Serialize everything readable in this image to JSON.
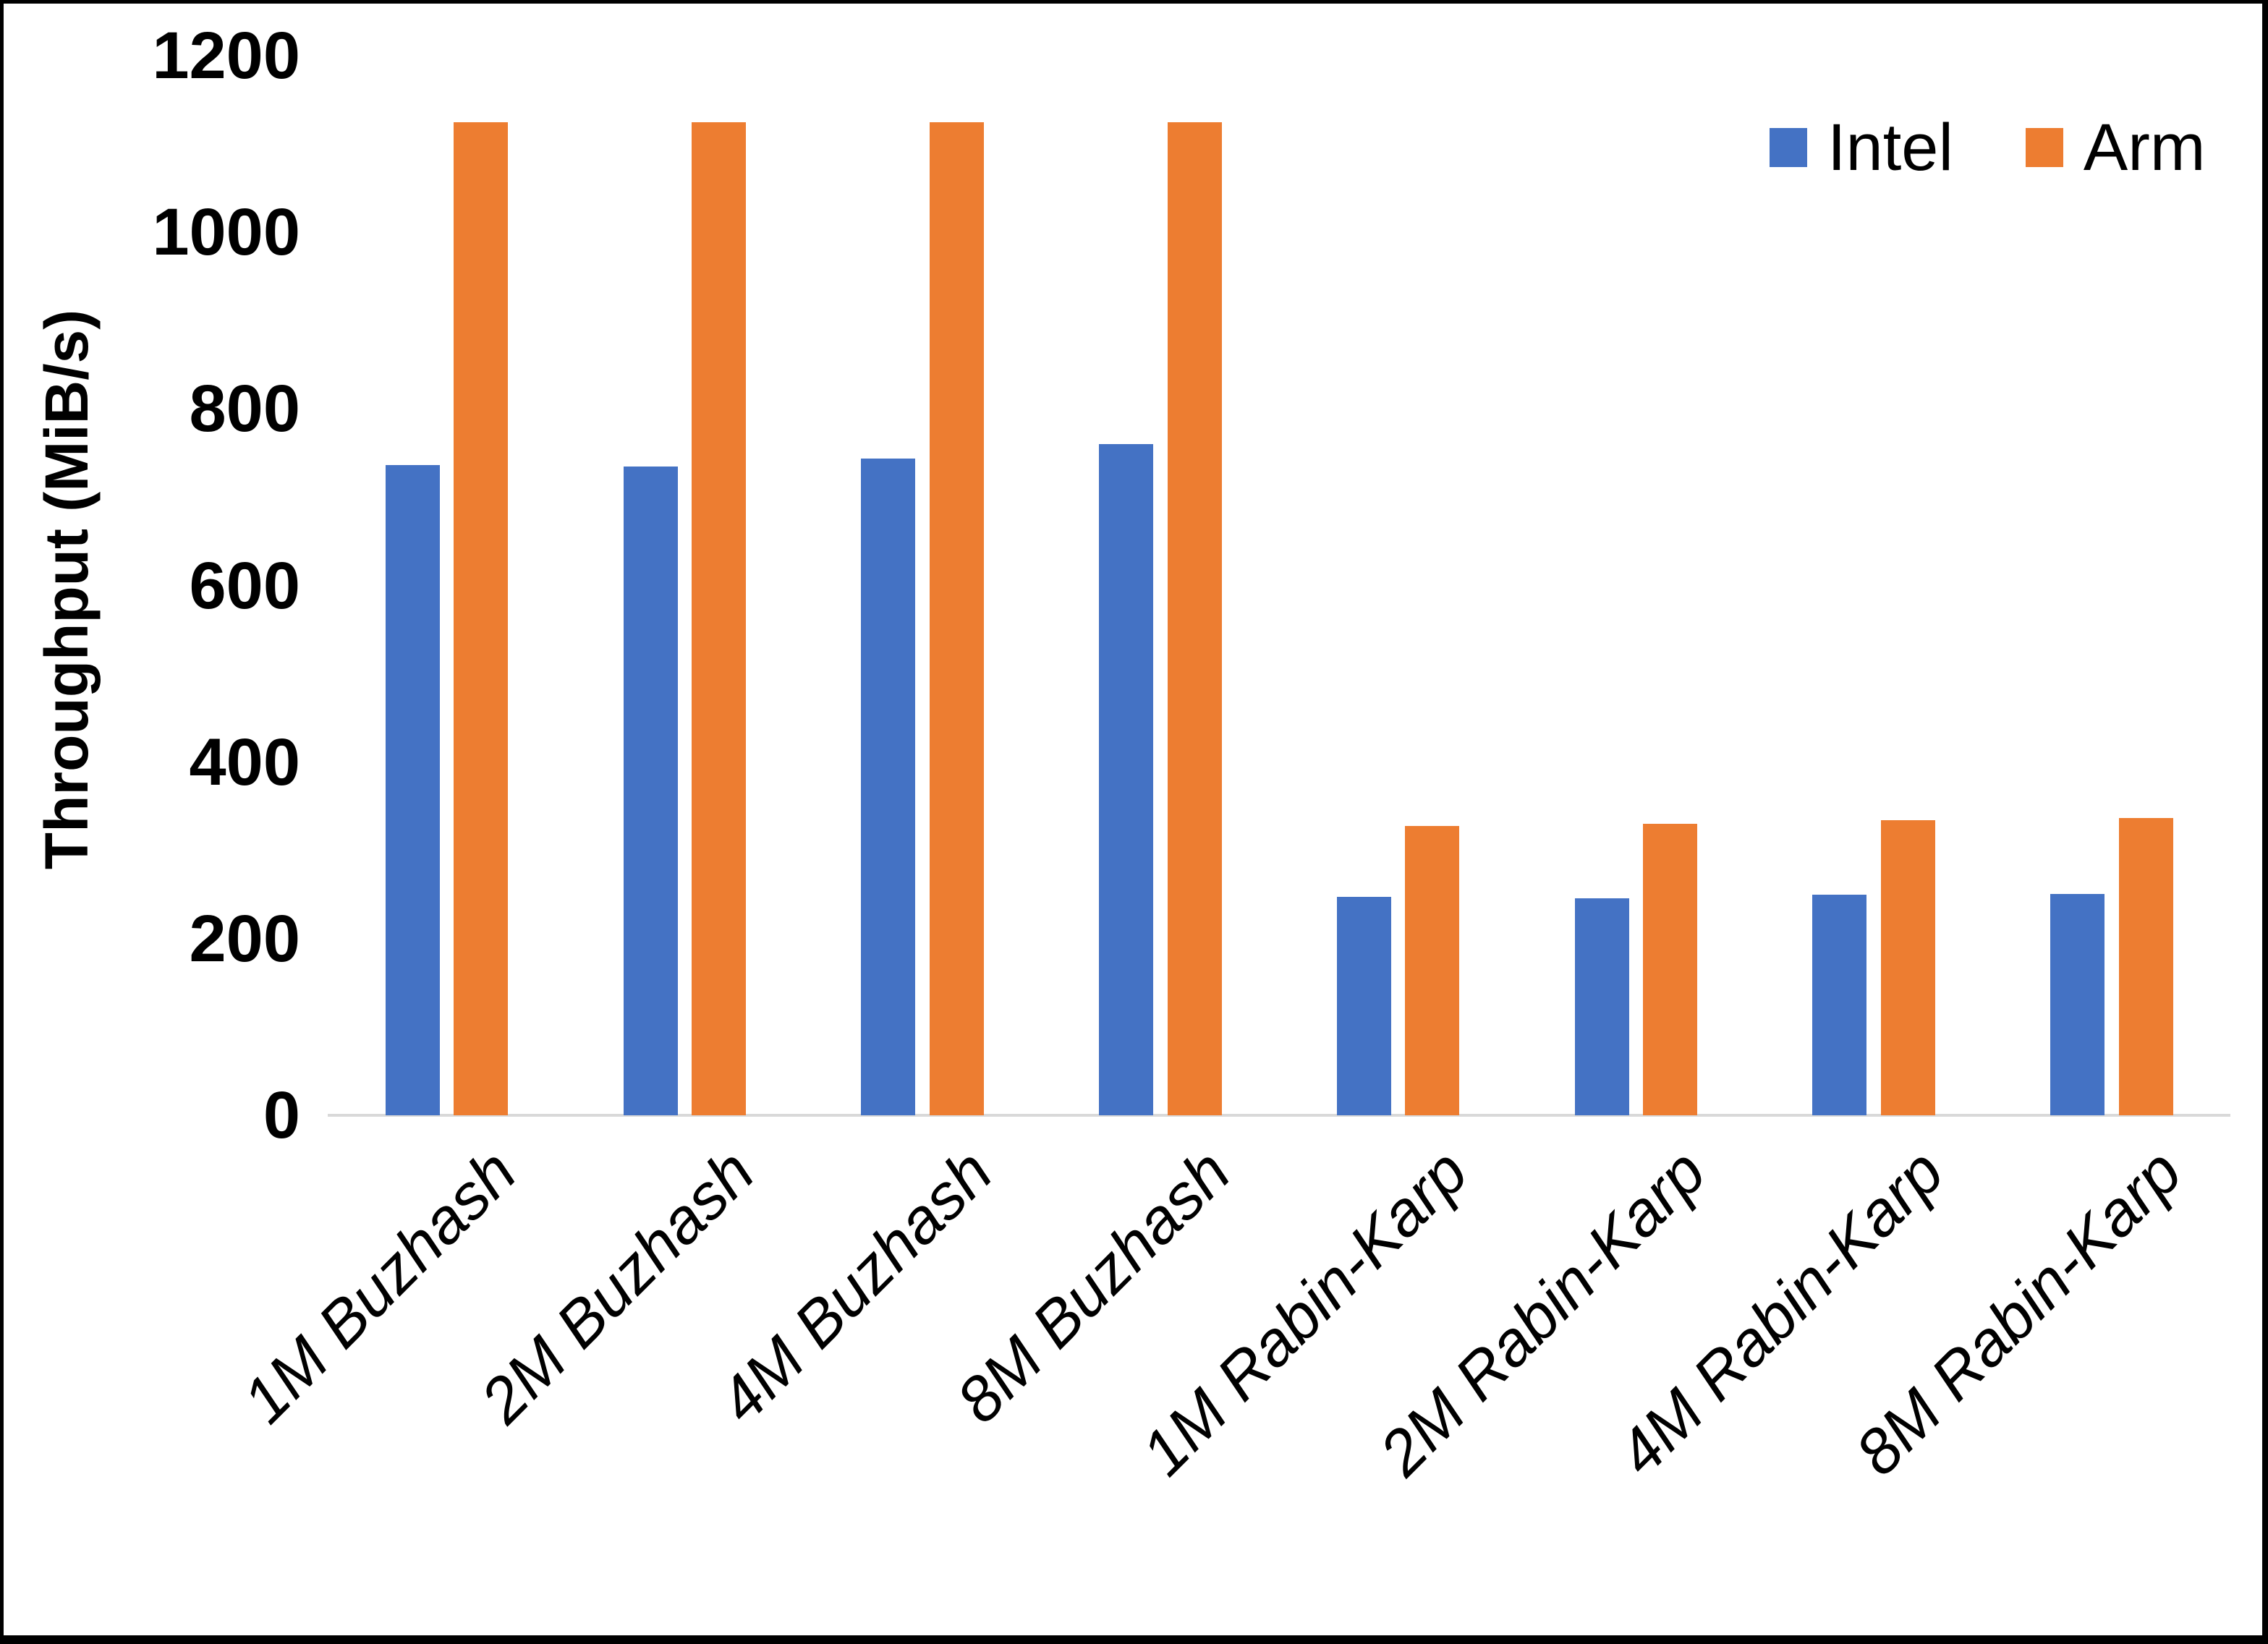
{
  "chart_data": {
    "type": "bar",
    "title": "",
    "xlabel": "",
    "ylabel": "Throughput (MiB/s)",
    "ylim": [
      0,
      1200
    ],
    "yticks": [
      0,
      200,
      400,
      600,
      800,
      1000,
      1200
    ],
    "grid": false,
    "legend_position": "top-right",
    "categories": [
      "1M Buzhash",
      "2M Buzhash",
      "4M Buzhash",
      "8M Buzhash",
      "1M Rabin-Karp",
      "2M Rabin-Karp",
      "4M Rabin-Karp",
      "8M Rabin-Karp"
    ],
    "series": [
      {
        "name": "Intel",
        "color": "#4472C4",
        "values": [
          736,
          735,
          744,
          760,
          247,
          246,
          250,
          251
        ]
      },
      {
        "name": "Arm",
        "color": "#ED7D31",
        "values": [
          1125,
          1125,
          1125,
          1125,
          328,
          330,
          334,
          337
        ]
      }
    ],
    "axis_line_color": "#D9D9D9",
    "frame_color": "#000000"
  }
}
